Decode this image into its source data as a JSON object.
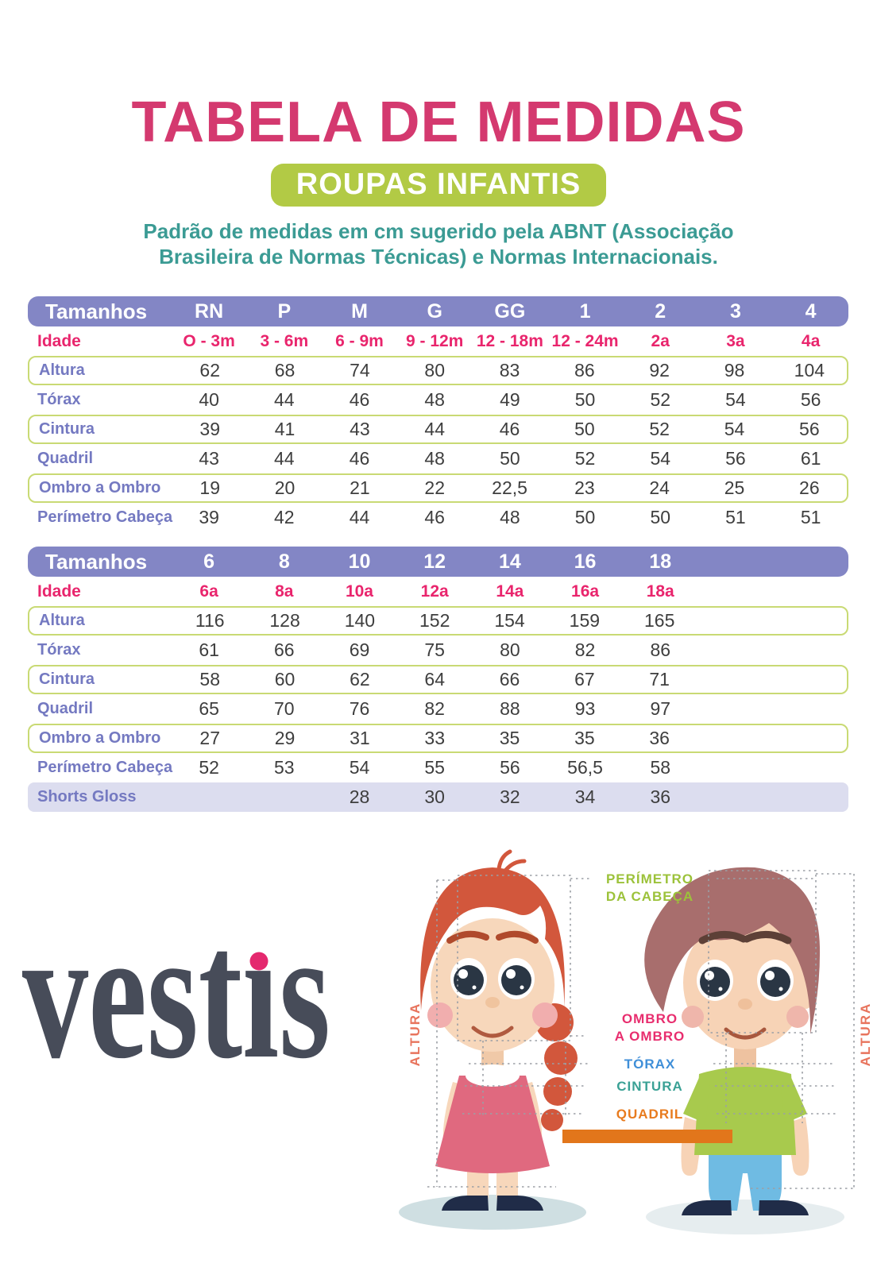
{
  "header": {
    "title": "TABELA DE MEDIDAS",
    "badge": "ROUPAS INFANTIS",
    "subtitle_line1": "Padrão de medidas em cm sugerido pela ABNT (Associação",
    "subtitle_line2": "Brasileira de Normas Técnicas) e Normas Internacionais."
  },
  "tables": [
    {
      "header_label": "Tamanhos",
      "column_slots": 9,
      "sizes": [
        "RN",
        "P",
        "M",
        "G",
        "GG",
        "1",
        "2",
        "3",
        "4"
      ],
      "age_label": "Idade",
      "ages": [
        "O - 3m",
        "3 - 6m",
        "6 - 9m",
        "9 - 12m",
        "12 - 18m",
        "12 - 24m",
        "2a",
        "3a",
        "4a"
      ],
      "rows": [
        {
          "label": "Altura",
          "style": "outlined",
          "values": [
            "62",
            "68",
            "74",
            "80",
            "83",
            "86",
            "92",
            "98",
            "104"
          ]
        },
        {
          "label": "Tórax",
          "style": "plain",
          "values": [
            "40",
            "44",
            "46",
            "48",
            "49",
            "50",
            "52",
            "54",
            "56"
          ]
        },
        {
          "label": "Cintura",
          "style": "outlined",
          "values": [
            "39",
            "41",
            "43",
            "44",
            "46",
            "50",
            "52",
            "54",
            "56"
          ]
        },
        {
          "label": "Quadril",
          "style": "plain",
          "values": [
            "43",
            "44",
            "46",
            "48",
            "50",
            "52",
            "54",
            "56",
            "61"
          ]
        },
        {
          "label": "Ombro a Ombro",
          "style": "outlined",
          "values": [
            "19",
            "20",
            "21",
            "22",
            "22,5",
            "23",
            "24",
            "25",
            "26"
          ]
        },
        {
          "label": "Perímetro Cabeça",
          "style": "plain",
          "values": [
            "39",
            "42",
            "44",
            "46",
            "48",
            "50",
            "50",
            "51",
            "51"
          ]
        }
      ]
    },
    {
      "header_label": "Tamanhos",
      "column_slots": 9,
      "sizes": [
        "6",
        "8",
        "10",
        "12",
        "14",
        "16",
        "18"
      ],
      "age_label": "Idade",
      "ages": [
        "6a",
        "8a",
        "10a",
        "12a",
        "14a",
        "16a",
        "18a"
      ],
      "rows": [
        {
          "label": "Altura",
          "style": "outlined",
          "values": [
            "116",
            "128",
            "140",
            "152",
            "154",
            "159",
            "165"
          ]
        },
        {
          "label": "Tórax",
          "style": "plain",
          "values": [
            "61",
            "66",
            "69",
            "75",
            "80",
            "82",
            "86"
          ]
        },
        {
          "label": "Cintura",
          "style": "outlined",
          "values": [
            "58",
            "60",
            "62",
            "64",
            "66",
            "67",
            "71"
          ]
        },
        {
          "label": "Quadril",
          "style": "plain",
          "values": [
            "65",
            "70",
            "76",
            "82",
            "88",
            "93",
            "97"
          ]
        },
        {
          "label": "Ombro a Ombro",
          "style": "outlined",
          "values": [
            "27",
            "29",
            "31",
            "33",
            "35",
            "35",
            "36"
          ]
        },
        {
          "label": "Perímetro Cabeça",
          "style": "plain",
          "values": [
            "52",
            "53",
            "54",
            "55",
            "56",
            "56,5",
            "58"
          ]
        },
        {
          "label": "Shorts Gloss",
          "style": "lavender",
          "values": [
            "",
            "",
            "28",
            "30",
            "32",
            "34",
            "36"
          ]
        }
      ]
    }
  ],
  "diagram": {
    "head_label_lines": [
      "PERÍMETRO",
      "DA CABEÇA"
    ],
    "shoulder_label_lines": [
      "OMBRO",
      "A OMBRO"
    ],
    "chest_label": "TÓRAX",
    "waist_label": "CINTURA",
    "hip_label": "QUADRIL",
    "height_label": "ALTURA"
  },
  "brand": {
    "logo_text": "vestis"
  },
  "colors": {
    "title_pink": "#d4396f",
    "badge_green": "#b2ca45",
    "subtitle_teal": "#3b9b94",
    "table_header_purple": "#8386c5",
    "age_pink": "#e9256d",
    "row_label_periwinkle": "#7479c1",
    "row_border_green": "#c9da74",
    "lavender_row": "#dcddef",
    "label_head_green": "#9cc23a",
    "label_shoulder_pink": "#e82d6e",
    "label_chest_blue": "#3f8fd8",
    "label_waist_teal": "#3aa195",
    "label_hip_orange": "#e87b1e",
    "height_salmon": "#e8745d",
    "logo_slate": "#474c59",
    "logo_dot_pink": "#e4286e"
  }
}
